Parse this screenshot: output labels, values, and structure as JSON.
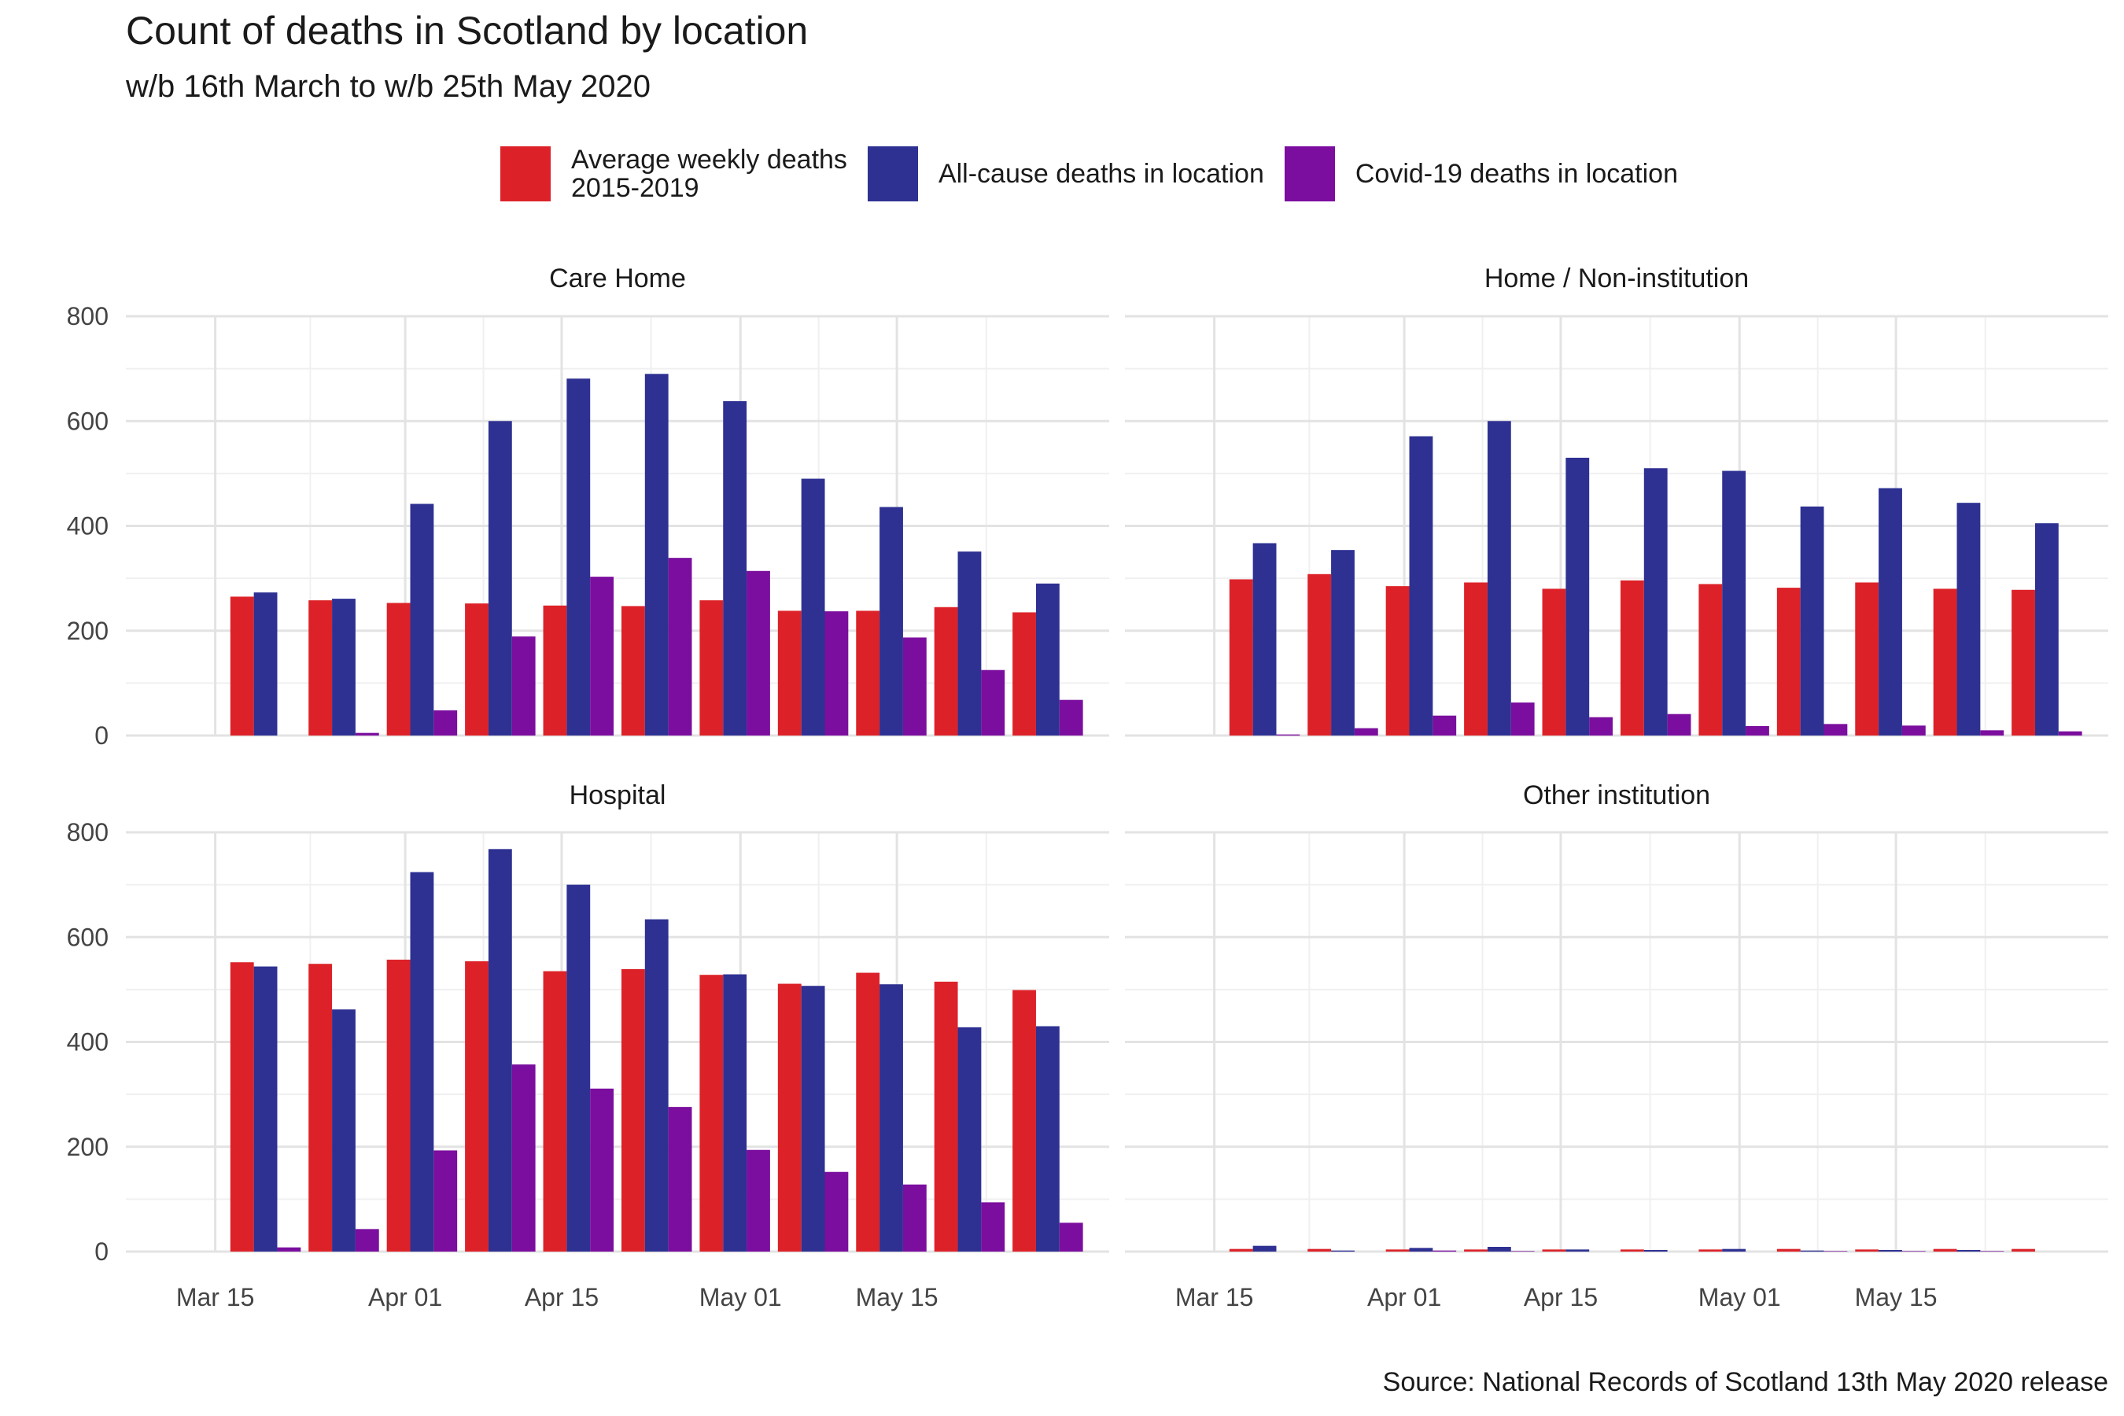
{
  "chart_data": {
    "type": "bar",
    "title": "Count of deaths in Scotland by location",
    "subtitle": "w/b 16th March to w/b 25th May 2020",
    "caption": "Source: National Records of Scotland 13th May 2020 release",
    "x_tick_labels": [
      "Mar 15",
      "Apr 01",
      "Apr 15",
      "May 01",
      "May 15"
    ],
    "x_tick_dates": [
      "2020-03-15",
      "2020-04-01",
      "2020-04-15",
      "2020-05-01",
      "2020-05-15"
    ],
    "weeks": [
      "2020-03-16",
      "2020-03-23",
      "2020-03-30",
      "2020-04-06",
      "2020-04-13",
      "2020-04-20",
      "2020-04-27",
      "2020-05-04",
      "2020-05-11",
      "2020-05-18",
      "2020-05-25"
    ],
    "ylim": [
      0,
      800
    ],
    "y_ticks": [
      0,
      200,
      400,
      600,
      800
    ],
    "grid": true,
    "legend_position": "top",
    "series_names": [
      "Average weekly deaths\n2015-2019",
      "All-cause deaths in location",
      "Covid-19 deaths in location"
    ],
    "series_colors": [
      "#dc2228",
      "#2e3192",
      "#7b0e9e"
    ],
    "panels": [
      {
        "name": "Care Home",
        "series": [
          {
            "name": "Average weekly deaths\n2015-2019",
            "values": [
              265,
              258,
              253,
              252,
              248,
              247,
              258,
              238,
              238,
              245,
              235
            ]
          },
          {
            "name": "All-cause deaths in location",
            "values": [
              273,
              261,
              442,
              600,
              681,
              690,
              638,
              490,
              436,
              351,
              290
            ]
          },
          {
            "name": "Covid-19 deaths in location",
            "values": [
              0,
              5,
              48,
              189,
              303,
              339,
              314,
              237,
              187,
              125,
              68
            ]
          }
        ]
      },
      {
        "name": "Home / Non-institution",
        "series": [
          {
            "name": "Average weekly deaths\n2015-2019",
            "values": [
              298,
              308,
              285,
              292,
              280,
              296,
              289,
              282,
              292,
              280,
              278
            ]
          },
          {
            "name": "All-cause deaths in location",
            "values": [
              367,
              354,
              571,
              600,
              530,
              510,
              505,
              437,
              472,
              444,
              405
            ]
          },
          {
            "name": "Covid-19 deaths in location",
            "values": [
              2,
              14,
              38,
              63,
              35,
              41,
              18,
              22,
              19,
              10,
              8
            ]
          }
        ]
      },
      {
        "name": "Hospital",
        "series": [
          {
            "name": "Average weekly deaths\n2015-2019",
            "values": [
              552,
              549,
              557,
              554,
              535,
              539,
              528,
              511,
              532,
              515,
              499
            ]
          },
          {
            "name": "All-cause deaths in location",
            "values": [
              544,
              462,
              724,
              768,
              700,
              634,
              529,
              507,
              510,
              428,
              430
            ]
          },
          {
            "name": "Covid-19 deaths in location",
            "values": [
              8,
              43,
              193,
              357,
              311,
              276,
              194,
              152,
              128,
              94,
              55
            ]
          }
        ]
      },
      {
        "name": "Other institution",
        "series": [
          {
            "name": "Average weekly deaths\n2015-2019",
            "values": [
              5,
              5,
              4,
              4,
              4,
              4,
              4,
              5,
              4,
              5,
              5
            ]
          },
          {
            "name": "All-cause deaths in location",
            "values": [
              11,
              2,
              7,
              9,
              4,
              3,
              5,
              2,
              3,
              3,
              0
            ]
          },
          {
            "name": "Covid-19 deaths in location",
            "values": [
              0,
              0,
              2,
              1,
              0,
              0,
              0,
              1,
              1,
              1,
              0
            ]
          }
        ]
      }
    ]
  }
}
